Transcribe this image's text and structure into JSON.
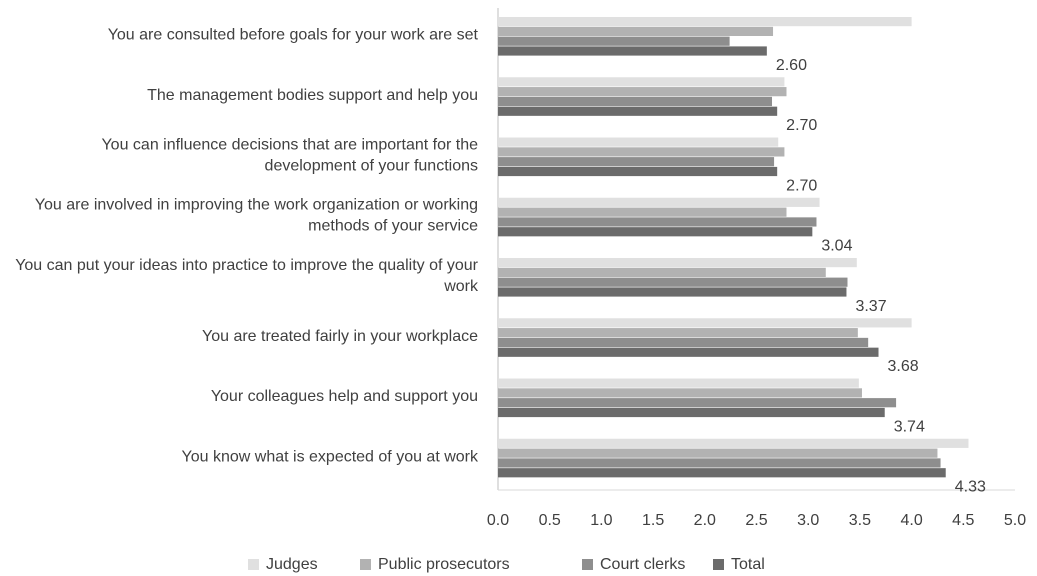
{
  "chart_data": {
    "type": "bar",
    "orientation": "horizontal",
    "categories": [
      "You are consulted before goals for your work are set",
      "The management bodies support and help you",
      "You can influence decisions that are important for the development of your functions",
      "You are involved in improving the work organization or working methods of your service",
      "You can put your ideas into practice to improve the quality of your work",
      "You are treated fairly in your workplace",
      "Your colleagues help and support you",
      "You know what is expected of you at work"
    ],
    "series": [
      {
        "name": "Judges",
        "color": "#e0e0e0",
        "values": [
          4.0,
          2.77,
          2.71,
          3.11,
          3.47,
          4.0,
          3.49,
          4.55
        ]
      },
      {
        "name": "Public prosecutors",
        "color": "#b2b2b2",
        "values": [
          2.66,
          2.79,
          2.77,
          2.79,
          3.17,
          3.48,
          3.52,
          4.25
        ]
      },
      {
        "name": "Court clerks",
        "color": "#8e8e8e",
        "values": [
          2.24,
          2.65,
          2.67,
          3.08,
          3.38,
          3.58,
          3.85,
          4.28
        ]
      },
      {
        "name": "Total",
        "color": "#6b6b6b",
        "values": [
          2.6,
          2.7,
          2.7,
          3.04,
          3.37,
          3.68,
          3.74,
          4.33
        ],
        "value_labels": [
          "2.60",
          "2.70",
          "2.70",
          "3.04",
          "3.37",
          "3.68",
          "3.74",
          "4.33"
        ]
      }
    ],
    "xlim": [
      0,
      5
    ],
    "xticks": [
      {
        "value": 0,
        "label": "0.0"
      },
      {
        "value": 0.5,
        "label": "0.5"
      },
      {
        "value": 1,
        "label": "1.0"
      },
      {
        "value": 1.5,
        "label": "1.5"
      },
      {
        "value": 2,
        "label": "2.0"
      },
      {
        "value": 2.5,
        "label": "2.5"
      },
      {
        "value": 3,
        "label": "3.0"
      },
      {
        "value": 3.5,
        "label": "3.5"
      },
      {
        "value": 4,
        "label": "4.0"
      },
      {
        "value": 4.5,
        "label": "4.5"
      },
      {
        "value": 5,
        "label": "5.0"
      }
    ],
    "legend": "bottom",
    "grid": false
  }
}
